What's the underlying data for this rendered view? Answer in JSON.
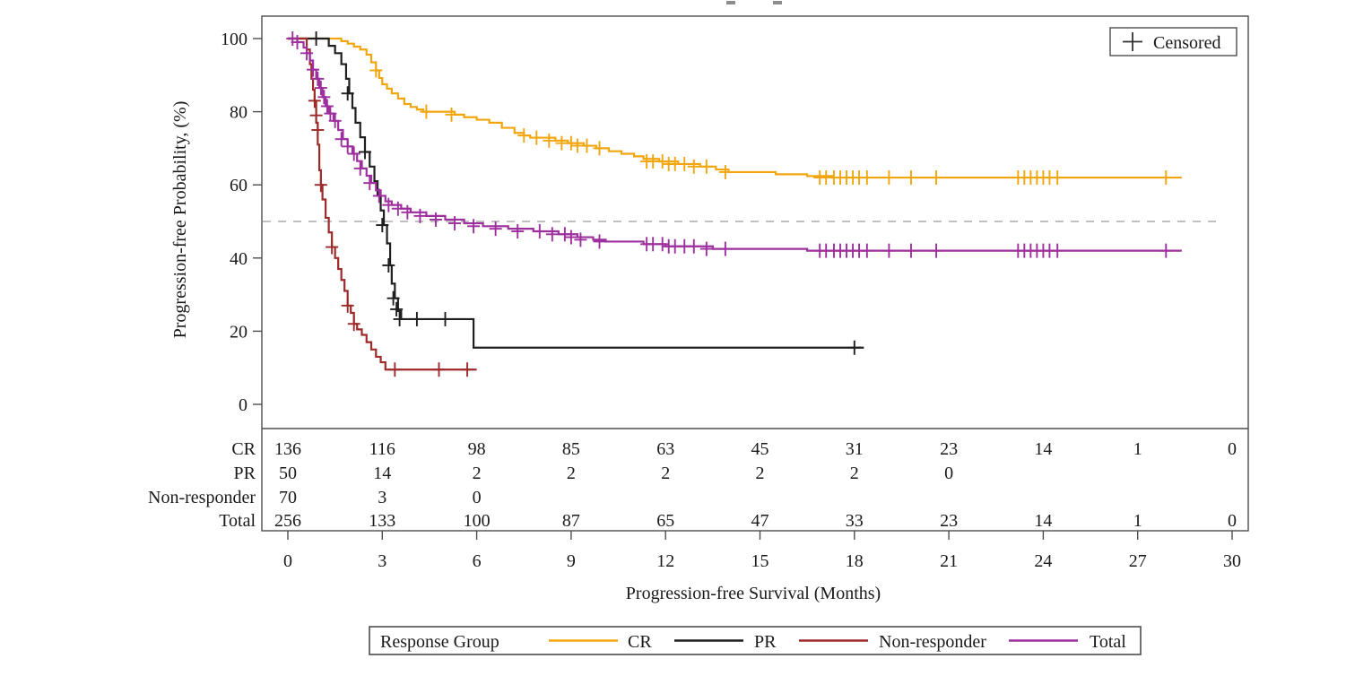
{
  "page": {
    "background": "#FFFFFF"
  },
  "decorations": {
    "clipped_title_fragments": 2
  },
  "censored_legend": {
    "marker": "+",
    "label": "Censored"
  },
  "chart_data": {
    "type": "line",
    "subtype": "kaplan-meier-step",
    "title": "",
    "xlabel": "Progression-free Survival (Months)",
    "ylabel": "Progression-free Probability, (%)",
    "xlim": [
      0,
      30
    ],
    "ylim": [
      0,
      100
    ],
    "x_ticks": [
      0,
      3,
      6,
      9,
      12,
      15,
      18,
      21,
      24,
      27,
      30
    ],
    "y_ticks": [
      0,
      20,
      40,
      60,
      80,
      100
    ],
    "grid": false,
    "reference_line": {
      "y": 50,
      "style": "dashed",
      "color": "#ABABAB"
    },
    "series": [
      {
        "name": "CR",
        "color": "#F2A50C",
        "steps": [
          [
            0,
            100
          ],
          [
            1.5,
            100
          ],
          [
            1.7,
            99.3
          ],
          [
            1.9,
            98.6
          ],
          [
            2.1,
            97.8
          ],
          [
            2.3,
            97
          ],
          [
            2.5,
            95.6
          ],
          [
            2.65,
            93.5
          ],
          [
            2.8,
            91.3
          ],
          [
            2.9,
            89.2
          ],
          [
            3.0,
            87.5
          ],
          [
            3.15,
            86.3
          ],
          [
            3.3,
            85
          ],
          [
            3.5,
            83.6
          ],
          [
            3.7,
            82.1
          ],
          [
            3.9,
            81.3
          ],
          [
            4.1,
            80.6
          ],
          [
            4.3,
            80
          ],
          [
            5.3,
            79.2
          ],
          [
            5.6,
            78.5
          ],
          [
            6.0,
            77.8
          ],
          [
            6.4,
            77
          ],
          [
            6.8,
            75.6
          ],
          [
            7.2,
            74.2
          ],
          [
            7.5,
            73.5
          ],
          [
            7.7,
            72.9
          ],
          [
            8.5,
            72.1
          ],
          [
            8.9,
            71.4
          ],
          [
            9.4,
            70.7
          ],
          [
            9.8,
            70
          ],
          [
            10.2,
            69.2
          ],
          [
            10.6,
            68.5
          ],
          [
            11.0,
            67.8
          ],
          [
            11.3,
            67.1
          ],
          [
            11.8,
            66.4
          ],
          [
            12.4,
            65.7
          ],
          [
            13.1,
            65
          ],
          [
            13.6,
            64.2
          ],
          [
            14.0,
            63.5
          ],
          [
            15.5,
            62.9
          ],
          [
            16.5,
            62.4
          ],
          [
            17.3,
            62
          ],
          [
            28.4,
            62
          ]
        ],
        "censors": [
          [
            2.8,
            91.3
          ],
          [
            4.4,
            80
          ],
          [
            5.2,
            79.2
          ],
          [
            7.5,
            73.5
          ],
          [
            7.9,
            72.9
          ],
          [
            8.3,
            72.1
          ],
          [
            8.7,
            71.4
          ],
          [
            9.0,
            71.4
          ],
          [
            9.2,
            70.7
          ],
          [
            9.5,
            70.7
          ],
          [
            9.9,
            70
          ],
          [
            11.4,
            66.4
          ],
          [
            11.6,
            66.4
          ],
          [
            11.9,
            66.4
          ],
          [
            12.1,
            65.7
          ],
          [
            12.3,
            65.7
          ],
          [
            12.6,
            65.7
          ],
          [
            12.9,
            65
          ],
          [
            13.3,
            65
          ],
          [
            13.9,
            63.5
          ],
          [
            16.9,
            62
          ],
          [
            17.1,
            62
          ],
          [
            17.35,
            62
          ],
          [
            17.55,
            62
          ],
          [
            17.75,
            62
          ],
          [
            17.95,
            62
          ],
          [
            18.15,
            62
          ],
          [
            18.4,
            62
          ],
          [
            19.1,
            62
          ],
          [
            19.8,
            62
          ],
          [
            20.6,
            62
          ],
          [
            23.2,
            62
          ],
          [
            23.4,
            62
          ],
          [
            23.6,
            62
          ],
          [
            23.8,
            62
          ],
          [
            24.0,
            62
          ],
          [
            24.2,
            62
          ],
          [
            24.45,
            62
          ],
          [
            27.9,
            62
          ]
        ]
      },
      {
        "name": "PR",
        "color": "#1F1F1F",
        "steps": [
          [
            0,
            100
          ],
          [
            1.0,
            100
          ],
          [
            1.3,
            98
          ],
          [
            1.5,
            96
          ],
          [
            1.7,
            93
          ],
          [
            1.85,
            89
          ],
          [
            1.95,
            85
          ],
          [
            2.05,
            81
          ],
          [
            2.15,
            77
          ],
          [
            2.3,
            73
          ],
          [
            2.45,
            69
          ],
          [
            2.6,
            65
          ],
          [
            2.75,
            61
          ],
          [
            2.85,
            57
          ],
          [
            2.95,
            53
          ],
          [
            3.05,
            49
          ],
          [
            3.15,
            44
          ],
          [
            3.25,
            38
          ],
          [
            3.3,
            33
          ],
          [
            3.4,
            29
          ],
          [
            3.5,
            25.5
          ],
          [
            3.6,
            23.3
          ],
          [
            5.9,
            15.5
          ],
          [
            18.3,
            15.5
          ]
        ],
        "censors": [
          [
            0.9,
            100
          ],
          [
            1.9,
            85
          ],
          [
            2.45,
            69
          ],
          [
            3.0,
            49
          ],
          [
            3.2,
            38
          ],
          [
            3.35,
            29
          ],
          [
            3.45,
            26
          ],
          [
            3.55,
            23.3
          ],
          [
            4.1,
            23.3
          ],
          [
            5.0,
            23.3
          ],
          [
            18.0,
            15.5
          ]
        ]
      },
      {
        "name": "Non-responder",
        "color": "#9E2A2B",
        "steps": [
          [
            0,
            100
          ],
          [
            0.5,
            100
          ],
          [
            0.6,
            97
          ],
          [
            0.7,
            93
          ],
          [
            0.75,
            89
          ],
          [
            0.8,
            86
          ],
          [
            0.85,
            83
          ],
          [
            0.9,
            77
          ],
          [
            0.95,
            71
          ],
          [
            1.0,
            64
          ],
          [
            1.05,
            60
          ],
          [
            1.1,
            56
          ],
          [
            1.2,
            51
          ],
          [
            1.3,
            47
          ],
          [
            1.4,
            43
          ],
          [
            1.5,
            40
          ],
          [
            1.6,
            37
          ],
          [
            1.7,
            34
          ],
          [
            1.8,
            31
          ],
          [
            1.9,
            27
          ],
          [
            2.0,
            25
          ],
          [
            2.1,
            22
          ],
          [
            2.2,
            20.5
          ],
          [
            2.35,
            19
          ],
          [
            2.5,
            17
          ],
          [
            2.65,
            15
          ],
          [
            2.8,
            13
          ],
          [
            2.95,
            11.5
          ],
          [
            3.1,
            9.5
          ],
          [
            6.0,
            9.5
          ]
        ],
        "censors": [
          [
            0.85,
            83
          ],
          [
            0.9,
            79
          ],
          [
            0.95,
            75
          ],
          [
            1.05,
            60
          ],
          [
            1.4,
            43
          ],
          [
            1.9,
            27
          ],
          [
            2.1,
            22
          ],
          [
            3.4,
            9.5
          ],
          [
            4.8,
            9.5
          ],
          [
            5.7,
            9.5
          ]
        ]
      },
      {
        "name": "Total",
        "color": "#9E2F9E",
        "steps": [
          [
            0,
            100
          ],
          [
            0.3,
            99
          ],
          [
            0.5,
            97.5
          ],
          [
            0.6,
            96
          ],
          [
            0.7,
            94
          ],
          [
            0.8,
            91.5
          ],
          [
            0.9,
            89
          ],
          [
            1.0,
            86.5
          ],
          [
            1.1,
            84
          ],
          [
            1.2,
            81.5
          ],
          [
            1.3,
            79.5
          ],
          [
            1.45,
            77.5
          ],
          [
            1.6,
            75
          ],
          [
            1.75,
            72.5
          ],
          [
            1.9,
            70.5
          ],
          [
            2.05,
            68.5
          ],
          [
            2.2,
            66.5
          ],
          [
            2.35,
            64.5
          ],
          [
            2.5,
            62.5
          ],
          [
            2.65,
            60.5
          ],
          [
            2.8,
            58.5
          ],
          [
            2.95,
            57
          ],
          [
            3.1,
            55.5
          ],
          [
            3.3,
            54.5
          ],
          [
            3.6,
            53.5
          ],
          [
            3.9,
            52.5
          ],
          [
            4.4,
            51.5
          ],
          [
            5.0,
            50.5
          ],
          [
            5.6,
            49.5
          ],
          [
            6.2,
            48.7
          ],
          [
            7.0,
            48
          ],
          [
            7.8,
            47.3
          ],
          [
            8.6,
            46.5
          ],
          [
            9.2,
            45.7
          ],
          [
            9.7,
            45
          ],
          [
            10.1,
            44.5
          ],
          [
            11.3,
            43.8
          ],
          [
            12.0,
            43.2
          ],
          [
            13.5,
            42.5
          ],
          [
            16.5,
            42
          ],
          [
            28.4,
            42
          ]
        ],
        "censors": [
          [
            0.15,
            100
          ],
          [
            0.3,
            99
          ],
          [
            0.6,
            96
          ],
          [
            0.8,
            91.5
          ],
          [
            0.95,
            89
          ],
          [
            1.05,
            86.5
          ],
          [
            1.15,
            84
          ],
          [
            1.25,
            81.5
          ],
          [
            1.35,
            79.5
          ],
          [
            1.5,
            77.5
          ],
          [
            1.7,
            72.5
          ],
          [
            1.9,
            70.5
          ],
          [
            2.1,
            68.5
          ],
          [
            2.3,
            64.5
          ],
          [
            2.6,
            60.5
          ],
          [
            2.9,
            57
          ],
          [
            3.2,
            54.5
          ],
          [
            3.5,
            53.5
          ],
          [
            3.8,
            52.5
          ],
          [
            4.2,
            51.5
          ],
          [
            4.7,
            50.5
          ],
          [
            5.3,
            49.5
          ],
          [
            5.9,
            48.7
          ],
          [
            6.6,
            48
          ],
          [
            7.3,
            47.3
          ],
          [
            8.0,
            47.3
          ],
          [
            8.4,
            46.5
          ],
          [
            8.8,
            46.5
          ],
          [
            9.0,
            45.7
          ],
          [
            9.3,
            45
          ],
          [
            9.9,
            44.5
          ],
          [
            11.4,
            43.8
          ],
          [
            11.6,
            43.8
          ],
          [
            11.9,
            43.8
          ],
          [
            12.1,
            43.2
          ],
          [
            12.3,
            43.2
          ],
          [
            12.6,
            43.2
          ],
          [
            12.9,
            43.2
          ],
          [
            13.3,
            42.5
          ],
          [
            13.9,
            42.5
          ],
          [
            16.9,
            42
          ],
          [
            17.1,
            42
          ],
          [
            17.35,
            42
          ],
          [
            17.55,
            42
          ],
          [
            17.75,
            42
          ],
          [
            17.95,
            42
          ],
          [
            18.15,
            42
          ],
          [
            18.4,
            42
          ],
          [
            19.1,
            42
          ],
          [
            19.8,
            42
          ],
          [
            20.6,
            42
          ],
          [
            23.2,
            42
          ],
          [
            23.4,
            42
          ],
          [
            23.6,
            42
          ],
          [
            23.8,
            42
          ],
          [
            24.0,
            42
          ],
          [
            24.2,
            42
          ],
          [
            24.45,
            42
          ],
          [
            27.9,
            42
          ]
        ]
      }
    ],
    "risk_table": {
      "months": [
        0,
        3,
        6,
        9,
        12,
        15,
        18,
        21,
        24,
        27,
        30
      ],
      "rows": [
        {
          "label": "CR",
          "color": "#F2A50C",
          "counts": [
            136,
            116,
            98,
            85,
            63,
            45,
            31,
            23,
            14,
            1,
            0
          ]
        },
        {
          "label": "PR",
          "color": "#1F1F1F",
          "counts": [
            50,
            14,
            2,
            2,
            2,
            2,
            2,
            0,
            "",
            "",
            ""
          ]
        },
        {
          "label": "Non-responder",
          "color": "#9E2A2B",
          "counts": [
            70,
            3,
            0,
            "",
            "",
            "",
            "",
            "",
            "",
            "",
            ""
          ]
        },
        {
          "label": "Total",
          "color": "#9E2F9E",
          "counts": [
            256,
            133,
            100,
            87,
            65,
            47,
            33,
            23,
            14,
            1,
            0
          ]
        }
      ]
    },
    "legend": {
      "title": "Response Group",
      "position": "bottom",
      "entries": [
        "CR",
        "PR",
        "Non-responder",
        "Total"
      ]
    }
  }
}
